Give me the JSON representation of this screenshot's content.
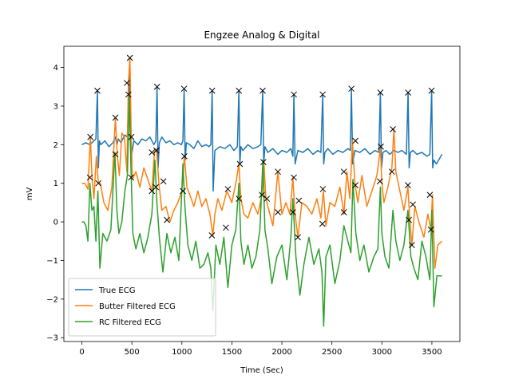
{
  "chart_data": {
    "type": "line",
    "title": "Engzee Analog & Digital",
    "xlabel": "Time (Sec)",
    "ylabel": "mV",
    "xlim": [
      -180,
      3780
    ],
    "ylim": [
      -3.1,
      4.55
    ],
    "xticks": [
      0,
      500,
      1000,
      1500,
      2000,
      2500,
      3000,
      3500
    ],
    "yticks": [
      -3,
      -2,
      -1,
      0,
      1,
      2,
      3,
      4
    ],
    "grid": false,
    "legend_position": "lower-left",
    "series": [
      {
        "name": "True ECG",
        "color": "#1f77b4",
        "x": [
          0,
          40,
          80,
          120,
          140,
          155,
          165,
          175,
          190,
          230,
          270,
          310,
          335,
          350,
          365,
          390,
          430,
          455,
          470,
          478,
          485,
          495,
          520,
          560,
          600,
          640,
          680,
          720,
          740,
          752,
          762,
          775,
          800,
          840,
          880,
          920,
          960,
          995,
          1010,
          1022,
          1033,
          1045,
          1080,
          1120,
          1160,
          1200,
          1240,
          1270,
          1290,
          1303,
          1313,
          1330,
          1380,
          1430,
          1480,
          1520,
          1555,
          1570,
          1580,
          1590,
          1610,
          1660,
          1710,
          1760,
          1790,
          1808,
          1818,
          1830,
          1860,
          1910,
          1960,
          2000,
          2050,
          2090,
          2110,
          2120,
          2132,
          2160,
          2210,
          2260,
          2310,
          2360,
          2390,
          2408,
          2418,
          2430,
          2460,
          2510,
          2560,
          2610,
          2660,
          2685,
          2695,
          2708,
          2730,
          2780,
          2830,
          2880,
          2930,
          2970,
          2985,
          2996,
          3010,
          3040,
          3080,
          3120,
          3160,
          3200,
          3245,
          3262,
          3272,
          3285,
          3310,
          3350,
          3400,
          3450,
          3480,
          3497,
          3508,
          3520,
          3545,
          3600
        ],
        "values": [
          2.0,
          2.05,
          2.0,
          2.1,
          2.15,
          3.4,
          1.4,
          2.1,
          2.0,
          2.1,
          1.95,
          2.05,
          2.2,
          2.0,
          2.15,
          2.05,
          2.25,
          2.2,
          3.3,
          4.2,
          2.2,
          1.7,
          2.1,
          2.0,
          2.15,
          2.1,
          2.2,
          2.0,
          2.1,
          3.5,
          1.4,
          2.05,
          2.2,
          2.05,
          2.1,
          2.0,
          2.05,
          2.0,
          2.1,
          3.45,
          1.6,
          2.05,
          2.0,
          1.9,
          2.1,
          1.95,
          2.0,
          1.95,
          2.0,
          3.4,
          0.8,
          1.85,
          1.95,
          1.9,
          2.0,
          1.85,
          1.95,
          3.4,
          1.5,
          1.95,
          1.85,
          2.0,
          1.9,
          1.95,
          2.0,
          3.4,
          1.5,
          1.95,
          1.8,
          1.9,
          1.75,
          1.85,
          1.8,
          1.9,
          1.7,
          3.3,
          1.5,
          1.85,
          1.8,
          1.9,
          1.75,
          1.85,
          1.8,
          3.3,
          1.5,
          1.8,
          1.9,
          1.75,
          1.85,
          1.8,
          1.9,
          1.85,
          3.45,
          1.5,
          1.85,
          1.8,
          1.9,
          1.75,
          1.85,
          1.8,
          3.35,
          1.4,
          1.8,
          1.85,
          1.75,
          1.85,
          1.8,
          1.85,
          1.75,
          3.35,
          1.4,
          1.8,
          1.85,
          1.75,
          1.8,
          1.7,
          1.75,
          3.4,
          1.4,
          1.6,
          1.5,
          1.75
        ]
      },
      {
        "name": "Butter Filtered ECG",
        "color": "#ff7f0e",
        "x": [
          0,
          30,
          60,
          85,
          100,
          120,
          145,
          165,
          185,
          220,
          260,
          300,
          335,
          355,
          375,
          400,
          425,
          450,
          465,
          480,
          492,
          505,
          540,
          580,
          620,
          660,
          700,
          725,
          745,
          770,
          800,
          840,
          880,
          920,
          960,
          1000,
          1025,
          1050,
          1080,
          1120,
          1160,
          1200,
          1240,
          1280,
          1310,
          1330,
          1360,
          1400,
          1450,
          1500,
          1540,
          1570,
          1590,
          1620,
          1660,
          1710,
          1760,
          1800,
          1820,
          1840,
          1870,
          1910,
          1960,
          2000,
          2040,
          2080,
          2110,
          2130,
          2160,
          2200,
          2250,
          2300,
          2350,
          2390,
          2415,
          2440,
          2480,
          2530,
          2580,
          2620,
          2650,
          2680,
          2705,
          2730,
          2760,
          2800,
          2850,
          2900,
          2950,
          2985,
          3000,
          3020,
          3060,
          3100,
          3120,
          3140,
          3180,
          3220,
          3260,
          3280,
          3300,
          3330,
          3370,
          3420,
          3460,
          3490,
          3505,
          3530,
          3560,
          3600
        ],
        "values": [
          1.0,
          1.0,
          0.85,
          2.2,
          1.2,
          0.6,
          1.7,
          1.0,
          1.0,
          0.5,
          0.3,
          0.9,
          2.7,
          1.7,
          1.2,
          2.3,
          2.2,
          1.3,
          3.6,
          4.25,
          2.4,
          1.1,
          1.3,
          0.9,
          1.4,
          1.1,
          0.8,
          1.8,
          1.9,
          1.0,
          0.3,
          0.4,
          0.0,
          0.3,
          0.5,
          0.8,
          1.7,
          0.9,
          0.7,
          0.4,
          0.8,
          0.4,
          0.6,
          0.2,
          -0.35,
          0.2,
          0.6,
          0.3,
          0.8,
          0.5,
          1.0,
          1.5,
          0.6,
          0.2,
          0.1,
          0.5,
          0.2,
          0.7,
          1.55,
          0.6,
          0.3,
          -0.1,
          1.3,
          0.2,
          0.5,
          0.2,
          1.15,
          0.25,
          -0.4,
          0.5,
          0.4,
          0.2,
          0.6,
          0.1,
          0.8,
          -0.1,
          0.5,
          0.4,
          0.9,
          0.2,
          1.3,
          0.6,
          2.1,
          1.0,
          0.5,
          1.2,
          0.4,
          0.8,
          1.2,
          1.9,
          1.0,
          0.5,
          0.9,
          1.4,
          2.4,
          1.3,
          0.8,
          0.3,
          0.9,
          0.0,
          -0.6,
          0.4,
          0.0,
          -0.4,
          0.2,
          -0.2,
          0.7,
          -1.2,
          -0.6,
          -0.5
        ]
      },
      {
        "name": "RC Filtered ECG",
        "color": "#2ca02c",
        "x": [
          0,
          20,
          40,
          60,
          80,
          100,
          120,
          140,
          160,
          180,
          210,
          250,
          290,
          330,
          350,
          370,
          400,
          430,
          455,
          475,
          490,
          510,
          540,
          580,
          620,
          660,
          700,
          730,
          750,
          775,
          810,
          850,
          890,
          930,
          970,
          1010,
          1030,
          1060,
          1100,
          1140,
          1180,
          1220,
          1260,
          1290,
          1310,
          1340,
          1380,
          1420,
          1460,
          1500,
          1540,
          1570,
          1590,
          1620,
          1660,
          1700,
          1740,
          1780,
          1810,
          1830,
          1860,
          1900,
          1950,
          2000,
          2050,
          2090,
          2110,
          2140,
          2180,
          2220,
          2270,
          2320,
          2370,
          2400,
          2418,
          2440,
          2480,
          2530,
          2580,
          2620,
          2660,
          2690,
          2710,
          2740,
          2780,
          2820,
          2870,
          2920,
          2960,
          2985,
          3000,
          3030,
          3070,
          3110,
          3140,
          3180,
          3220,
          3260,
          3290,
          3320,
          3360,
          3400,
          3440,
          3480,
          3500,
          3520,
          3550,
          3600
        ],
        "values": [
          0.0,
          0.0,
          -0.1,
          -0.5,
          1.0,
          0.3,
          0.4,
          -0.5,
          0.8,
          -1.2,
          -0.3,
          -0.5,
          -0.2,
          1.8,
          0.3,
          -0.3,
          0.0,
          0.8,
          1.2,
          3.2,
          1.5,
          -0.3,
          -0.7,
          -0.3,
          -0.8,
          -0.4,
          0.2,
          1.6,
          0.5,
          -0.4,
          -1.3,
          -0.3,
          -0.8,
          -0.4,
          -1.0,
          1.5,
          0.4,
          -0.6,
          -1.0,
          -0.5,
          -1.2,
          -1.1,
          -0.8,
          -1.2,
          -2.3,
          -0.6,
          -1.1,
          -0.4,
          -1.7,
          -0.6,
          -0.2,
          1.0,
          -0.5,
          -1.1,
          -0.6,
          -1.2,
          -0.9,
          -0.2,
          1.6,
          -0.2,
          -0.7,
          -1.6,
          -0.9,
          -0.6,
          -1.5,
          -0.4,
          0.6,
          -0.9,
          -1.9,
          -1.1,
          -0.4,
          -1.1,
          -0.7,
          -1.3,
          -2.7,
          -0.9,
          -0.6,
          -1.6,
          -1.0,
          -0.1,
          -0.5,
          -0.8,
          1.1,
          -0.3,
          -1.0,
          -0.6,
          -1.3,
          -0.9,
          -0.7,
          0.9,
          -0.3,
          -0.9,
          -1.2,
          0.3,
          -0.5,
          -1.0,
          -0.6,
          0.3,
          -0.9,
          -1.2,
          -1.5,
          -0.5,
          -0.9,
          -1.5,
          0.3,
          -2.2,
          -1.4,
          -1.4
        ]
      }
    ],
    "markers": {
      "symbol": "x",
      "color": "#000000",
      "points": [
        [
          155,
          3.4
        ],
        [
          752,
          3.5
        ],
        [
          1022,
          3.45
        ],
        [
          1303,
          3.4
        ],
        [
          1570,
          3.4
        ],
        [
          1808,
          3.4
        ],
        [
          2120,
          3.3
        ],
        [
          2408,
          3.3
        ],
        [
          2695,
          3.45
        ],
        [
          2985,
          3.35
        ],
        [
          3262,
          3.35
        ],
        [
          3497,
          3.4
        ],
        [
          85,
          2.2
        ],
        [
          80,
          1.15
        ],
        [
          165,
          1.0
        ],
        [
          335,
          2.7
        ],
        [
          335,
          1.75
        ],
        [
          450,
          3.6
        ],
        [
          465,
          3.3
        ],
        [
          480,
          4.25
        ],
        [
          495,
          2.2
        ],
        [
          492,
          1.15
        ],
        [
          700,
          0.8
        ],
        [
          700,
          1.8
        ],
        [
          745,
          1.85
        ],
        [
          740,
          0.9
        ],
        [
          815,
          1.05
        ],
        [
          850,
          0.05
        ],
        [
          1010,
          0.8
        ],
        [
          1025,
          1.7
        ],
        [
          1300,
          -0.35
        ],
        [
          1460,
          0.85
        ],
        [
          1440,
          -0.15
        ],
        [
          1570,
          0.6
        ],
        [
          1580,
          1.5
        ],
        [
          1800,
          0.7
        ],
        [
          1815,
          1.55
        ],
        [
          1850,
          0.6
        ],
        [
          1960,
          1.3
        ],
        [
          1960,
          0.25
        ],
        [
          2110,
          0.25
        ],
        [
          2120,
          1.15
        ],
        [
          2170,
          0.55
        ],
        [
          2160,
          -0.4
        ],
        [
          2410,
          0.85
        ],
        [
          2405,
          -0.05
        ],
        [
          2620,
          1.3
        ],
        [
          2620,
          0.25
        ],
        [
          2735,
          2.1
        ],
        [
          2735,
          0.95
        ],
        [
          2980,
          1.05
        ],
        [
          2990,
          1.95
        ],
        [
          3110,
          2.4
        ],
        [
          3100,
          1.3
        ],
        [
          3260,
          0.95
        ],
        [
          3270,
          0.05
        ],
        [
          3300,
          -0.6
        ],
        [
          3310,
          0.45
        ],
        [
          3480,
          0.7
        ],
        [
          3490,
          -0.2
        ]
      ]
    }
  }
}
